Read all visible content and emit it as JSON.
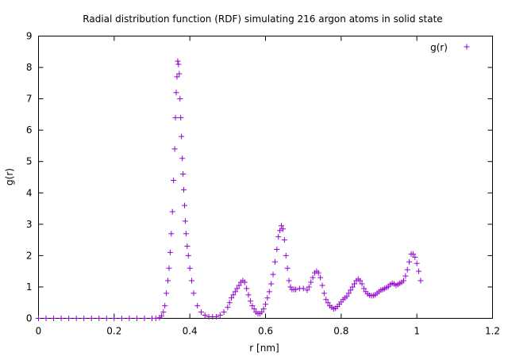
{
  "chart_data": {
    "type": "scatter",
    "title": "Radial distribution function (RDF) simulating 216 argon atoms in solid state",
    "xlabel": "r [nm]",
    "ylabel": "g(r)",
    "xlim": [
      0,
      1.2
    ],
    "ylim": [
      0,
      9
    ],
    "xticks": [
      0,
      0.2,
      0.4,
      0.6,
      0.8,
      1,
      1.2
    ],
    "xtick_labels": [
      "0",
      "0.2",
      "0.4",
      "0.6",
      "0.8",
      "1",
      "1.2"
    ],
    "yticks": [
      0,
      1,
      2,
      3,
      4,
      5,
      6,
      7,
      8,
      9
    ],
    "ytick_labels": [
      "0",
      "1",
      "2",
      "3",
      "4",
      "5",
      "6",
      "7",
      "8",
      "9"
    ],
    "grid": false,
    "legend_position": "top-right",
    "marker": "+",
    "series": [
      {
        "name": "g(r)",
        "color": "#9400d3",
        "x": [
          0.0,
          0.02,
          0.04,
          0.06,
          0.08,
          0.1,
          0.12,
          0.14,
          0.16,
          0.18,
          0.2,
          0.22,
          0.24,
          0.26,
          0.28,
          0.3,
          0.31,
          0.32,
          0.325,
          0.33,
          0.334,
          0.338,
          0.342,
          0.345,
          0.348,
          0.351,
          0.354,
          0.357,
          0.36,
          0.362,
          0.364,
          0.366,
          0.368,
          0.37,
          0.372,
          0.374,
          0.376,
          0.378,
          0.38,
          0.382,
          0.384,
          0.386,
          0.388,
          0.39,
          0.393,
          0.396,
          0.4,
          0.405,
          0.41,
          0.42,
          0.43,
          0.44,
          0.45,
          0.46,
          0.47,
          0.48,
          0.49,
          0.5,
          0.505,
          0.51,
          0.515,
          0.52,
          0.525,
          0.53,
          0.535,
          0.54,
          0.545,
          0.55,
          0.555,
          0.56,
          0.565,
          0.57,
          0.575,
          0.58,
          0.585,
          0.59,
          0.595,
          0.6,
          0.605,
          0.61,
          0.615,
          0.62,
          0.625,
          0.63,
          0.634,
          0.638,
          0.642,
          0.646,
          0.65,
          0.654,
          0.658,
          0.662,
          0.666,
          0.67,
          0.675,
          0.68,
          0.69,
          0.7,
          0.71,
          0.715,
          0.72,
          0.725,
          0.73,
          0.735,
          0.74,
          0.745,
          0.75,
          0.755,
          0.76,
          0.765,
          0.77,
          0.775,
          0.78,
          0.785,
          0.79,
          0.795,
          0.8,
          0.805,
          0.81,
          0.815,
          0.82,
          0.825,
          0.83,
          0.835,
          0.84,
          0.845,
          0.85,
          0.855,
          0.86,
          0.865,
          0.87,
          0.875,
          0.88,
          0.885,
          0.89,
          0.895,
          0.9,
          0.905,
          0.91,
          0.915,
          0.92,
          0.925,
          0.93,
          0.935,
          0.94,
          0.945,
          0.95,
          0.955,
          0.96,
          0.965,
          0.97,
          0.975,
          0.98,
          0.985,
          0.99,
          0.995,
          1.0,
          1.005,
          1.01
        ],
        "y": [
          0,
          0,
          0,
          0,
          0,
          0,
          0,
          0,
          0,
          0,
          0,
          0,
          0,
          0,
          0,
          0,
          0,
          0.02,
          0.08,
          0.2,
          0.4,
          0.8,
          1.2,
          1.6,
          2.1,
          2.7,
          3.4,
          4.4,
          5.4,
          6.4,
          7.2,
          7.7,
          8.2,
          8.1,
          7.8,
          7.0,
          6.4,
          5.8,
          5.1,
          4.6,
          4.1,
          3.6,
          3.1,
          2.7,
          2.3,
          2.0,
          1.6,
          1.2,
          0.8,
          0.4,
          0.2,
          0.1,
          0.05,
          0.05,
          0.05,
          0.1,
          0.2,
          0.35,
          0.5,
          0.65,
          0.75,
          0.85,
          0.95,
          1.05,
          1.15,
          1.2,
          1.15,
          0.95,
          0.75,
          0.55,
          0.4,
          0.3,
          0.2,
          0.15,
          0.15,
          0.2,
          0.3,
          0.45,
          0.65,
          0.85,
          1.1,
          1.4,
          1.8,
          2.2,
          2.6,
          2.8,
          2.95,
          2.85,
          2.5,
          2.0,
          1.6,
          1.2,
          1.0,
          0.92,
          0.92,
          0.92,
          0.95,
          0.95,
          0.9,
          1.0,
          1.15,
          1.3,
          1.45,
          1.5,
          1.45,
          1.3,
          1.05,
          0.8,
          0.6,
          0.5,
          0.4,
          0.35,
          0.3,
          0.32,
          0.38,
          0.45,
          0.52,
          0.6,
          0.65,
          0.7,
          0.8,
          0.9,
          1.0,
          1.1,
          1.2,
          1.25,
          1.2,
          1.1,
          0.95,
          0.85,
          0.78,
          0.74,
          0.72,
          0.72,
          0.75,
          0.8,
          0.85,
          0.9,
          0.92,
          0.95,
          0.98,
          1.02,
          1.08,
          1.12,
          1.1,
          1.05,
          1.08,
          1.12,
          1.15,
          1.2,
          1.35,
          1.55,
          1.8,
          2.05,
          2.05,
          1.95,
          1.75,
          1.5,
          1.2
        ]
      }
    ]
  }
}
